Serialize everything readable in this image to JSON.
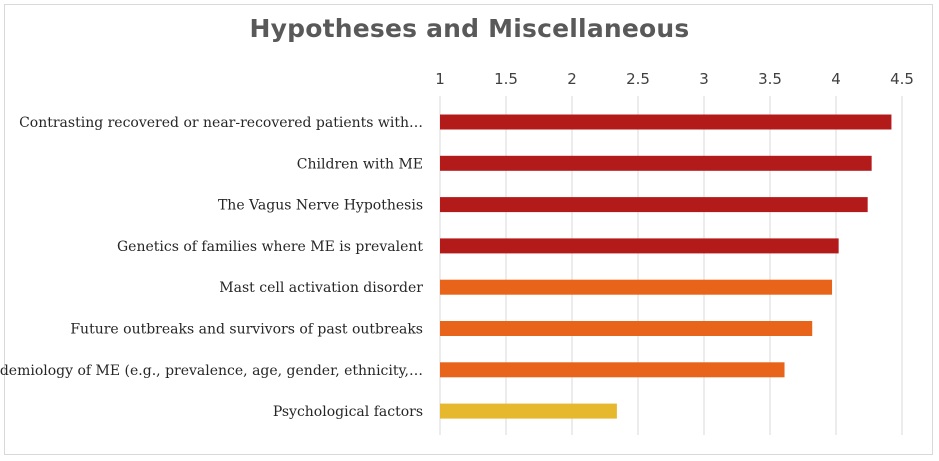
{
  "chart_data": {
    "type": "bar",
    "orientation": "horizontal",
    "title": "Hypotheses and Miscellaneous",
    "xlim": [
      1,
      4.5
    ],
    "ticks": [
      "1",
      "1.5",
      "2",
      "2.5",
      "3",
      "3.5",
      "4",
      "4.5"
    ],
    "tick_values": [
      1,
      1.5,
      2,
      2.5,
      3,
      3.5,
      4,
      4.5
    ],
    "axis_position": "top",
    "grid": true,
    "categories": [
      "Contrasting recovered or near-recovered patients with…",
      "Children with ME",
      "The Vagus Nerve Hypothesis",
      "Genetics of families where ME is prevalent",
      "Mast cell activation disorder",
      "Future outbreaks and survivors of past outbreaks",
      "Epidemiology of ME (e.g., prevalence, age, gender, ethnicity,…",
      "Psychological factors"
    ],
    "values": [
      4.42,
      4.27,
      4.24,
      4.02,
      3.97,
      3.82,
      3.61,
      2.34
    ],
    "bar_colors": [
      "#b31b1b",
      "#b31b1b",
      "#b31b1b",
      "#b31b1b",
      "#e8641a",
      "#e8641a",
      "#e8641a",
      "#e6b82e"
    ]
  }
}
